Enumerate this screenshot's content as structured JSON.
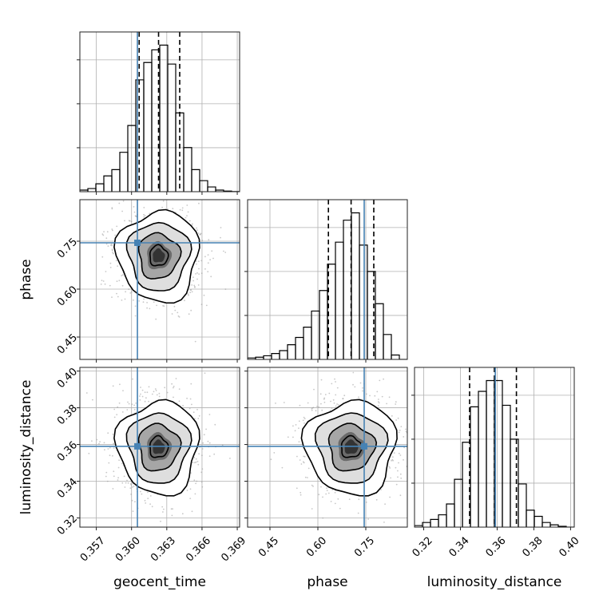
{
  "chart_data": {
    "type": "corner",
    "parameters": [
      {
        "name": "geocent_time",
        "label": "geocent_time",
        "range": [
          0.3556,
          0.3692
        ],
        "ticks": [
          0.357,
          0.36,
          0.363,
          0.366,
          0.369
        ],
        "tick_labels": [
          "0.357",
          "0.360",
          "0.363",
          "0.366",
          "0.369"
        ],
        "truth": 0.3605,
        "quantiles": [
          0.36065,
          0.3623,
          0.3641
        ],
        "hist": {
          "edges_start": 0.3556,
          "bin_width": 0.00068,
          "counts": [
            0.01,
            0.02,
            0.05,
            0.1,
            0.14,
            0.25,
            0.42,
            0.71,
            0.82,
            0.9,
            0.93,
            0.81,
            0.5,
            0.28,
            0.14,
            0.07,
            0.03,
            0.01,
            0.004,
            0.001
          ]
        }
      },
      {
        "name": "phase",
        "label": "phase",
        "range": [
          0.38,
          0.88
        ],
        "ticks": [
          0.45,
          0.6,
          0.75
        ],
        "tick_labels": [
          "0.45",
          "0.60",
          "0.75"
        ],
        "truth": 0.745,
        "quantiles": [
          0.633,
          0.704,
          0.775
        ],
        "hist": {
          "edges_start": 0.38,
          "bin_width": 0.025,
          "counts": [
            0.01,
            0.015,
            0.025,
            0.04,
            0.06,
            0.1,
            0.15,
            0.22,
            0.33,
            0.47,
            0.65,
            0.8,
            0.95,
            1.0,
            0.78,
            0.6,
            0.38,
            0.17,
            0.03,
            0.0
          ]
        }
      },
      {
        "name": "luminosity_distance",
        "label": "luminosity_distance",
        "range": [
          0.315,
          0.402
        ],
        "ticks": [
          0.32,
          0.34,
          0.36,
          0.38,
          0.4
        ],
        "tick_labels": [
          "0.32",
          "0.34",
          "0.36",
          "0.38",
          "0.40"
        ],
        "truth": 0.359,
        "quantiles": [
          0.345,
          0.3585,
          0.3705
        ],
        "hist": {
          "edges_start": 0.315,
          "bin_width": 0.00435,
          "counts": [
            0.01,
            0.03,
            0.05,
            0.08,
            0.15,
            0.31,
            0.55,
            0.78,
            0.88,
            0.95,
            0.95,
            0.79,
            0.57,
            0.28,
            0.11,
            0.07,
            0.03,
            0.015,
            0.005,
            0.0
          ]
        }
      }
    ],
    "truth_color": "#4682b4",
    "quantile_color": "#000000",
    "grid": true,
    "contour_levels": 4,
    "scatter_points": true
  }
}
